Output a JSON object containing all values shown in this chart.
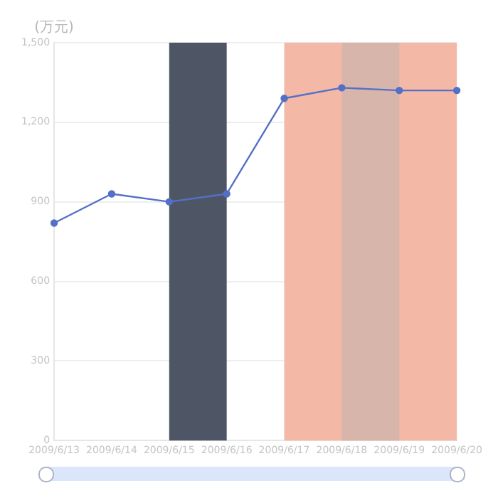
{
  "chart_data": {
    "type": "line",
    "ylabel": "(万元)",
    "categories": [
      "2009/6/13",
      "2009/6/14",
      "2009/6/15",
      "2009/6/16",
      "2009/6/17",
      "2009/6/18",
      "2009/6/19",
      "2009/6/20"
    ],
    "series": [
      {
        "color": "#5470c6",
        "values": [
          820,
          930,
          900,
          930,
          1290,
          1330,
          1320,
          1320
        ]
      }
    ],
    "ylim": [
      0,
      1500
    ],
    "yticks": [
      0,
      300,
      600,
      900,
      {
        "value": 1200,
        "label": "1,200"
      },
      {
        "value": 1500,
        "label": "1,500"
      }
    ],
    "bands": [
      {
        "axis": "x",
        "from": "2009/6/15",
        "to": "2009/6/16",
        "color": "#4e5565"
      },
      {
        "axis": "x",
        "from": "2009/6/17",
        "to": "2009/6/20",
        "color": "#f4b8a6"
      },
      {
        "axis": "x",
        "from": "2009/6/18",
        "to": "2009/6/19",
        "color": "#d8b5aa"
      }
    ],
    "grid": "y",
    "marker": "circle",
    "line_style": "solid",
    "legend": false
  }
}
